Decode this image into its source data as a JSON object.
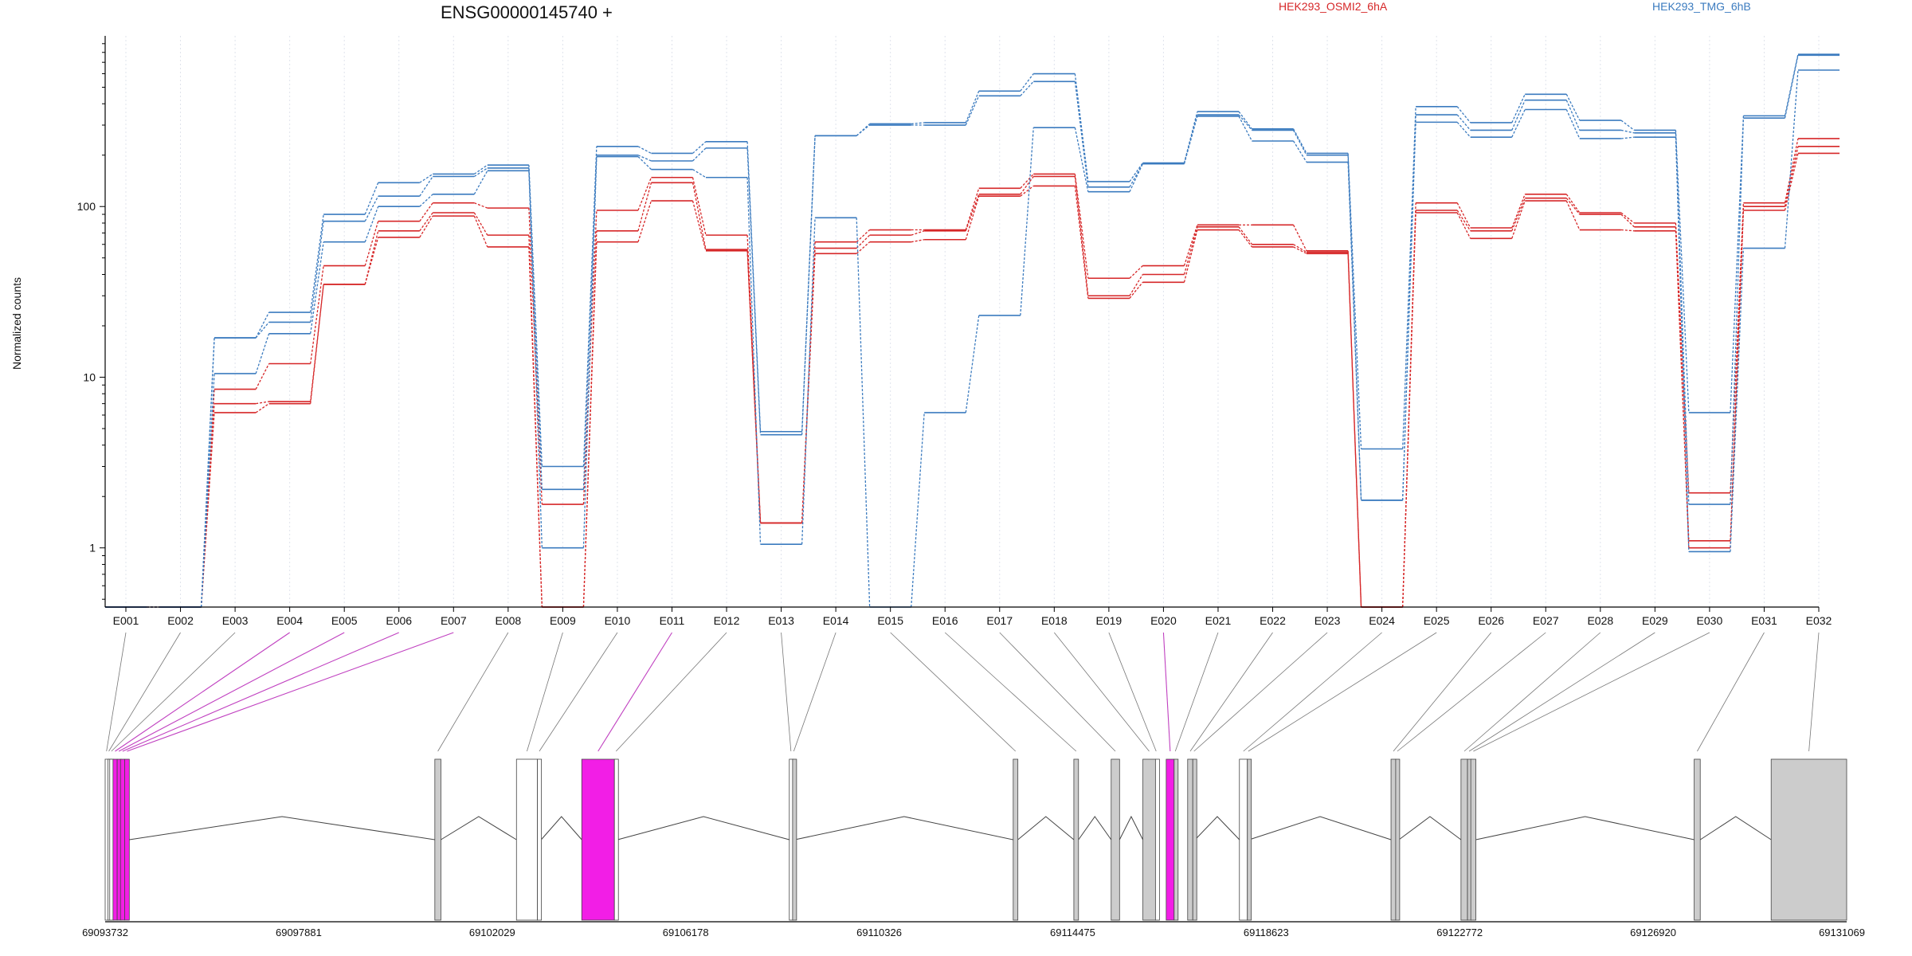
{
  "chart_data": {
    "type": "line",
    "title": "ENSG00000145740 +",
    "xlabel": "",
    "ylabel": "Normalized counts",
    "y_scale": "log",
    "ylim": [
      0.45,
      1000
    ],
    "y_ticks": [
      {
        "value": 1,
        "label": "1"
      },
      {
        "value": 10,
        "label": "10"
      },
      {
        "value": 100,
        "label": "100"
      }
    ],
    "grid": "vertical dotted",
    "legend_placement": "top",
    "legend": [
      {
        "label": "HEK293_OSMI2_6hA",
        "color": "#d62728"
      },
      {
        "label": "HEK293_TMG_6hB",
        "color": "#3b7bbf"
      }
    ],
    "categories": [
      "E001",
      "E002",
      "E003",
      "E004",
      "E005",
      "E006",
      "E007",
      "E008",
      "E009",
      "E010",
      "E011",
      "E012",
      "E013",
      "E014",
      "E015",
      "E016",
      "E017",
      "E018",
      "E019",
      "E020",
      "E021",
      "E022",
      "E023",
      "E024",
      "E025",
      "E026",
      "E027",
      "E028",
      "E029",
      "E030",
      "E031",
      "E032"
    ],
    "series": [
      {
        "group": "HEK293_OSMI2_6hA",
        "color": "#d62728",
        "values": [
          0.45,
          0.45,
          8.5,
          12,
          45,
          82,
          105,
          98,
          1.8,
          95,
          148,
          68,
          1.4,
          62,
          73,
          73,
          128,
          155,
          38,
          45,
          78,
          78,
          55,
          0.45,
          105,
          75,
          118,
          92,
          80,
          2.1,
          105,
          250
        ]
      },
      {
        "group": "HEK293_OSMI2_6hA",
        "color": "#d62728",
        "values": [
          0.45,
          0.45,
          7,
          7.2,
          35,
          72,
          92,
          68,
          0.45,
          72,
          138,
          56,
          1.4,
          57,
          68,
          72,
          118,
          150,
          30,
          40,
          76,
          60,
          54,
          0.45,
          95,
          72,
          112,
          90,
          76,
          1.1,
          100,
          225
        ]
      },
      {
        "group": "HEK293_OSMI2_6hA",
        "color": "#d62728",
        "values": [
          0.45,
          0.45,
          6.2,
          7,
          35,
          66,
          88,
          58,
          0.45,
          62,
          108,
          55,
          1.4,
          53,
          62,
          64,
          115,
          132,
          29,
          36,
          73,
          58,
          53,
          0.45,
          92,
          65,
          108,
          73,
          72,
          1.0,
          95,
          205
        ]
      },
      {
        "group": "HEK293_TMG_6hB",
        "color": "#3b7bbf",
        "values": [
          0.45,
          0.45,
          17,
          24,
          90,
          138,
          155,
          175,
          3,
          225,
          205,
          240,
          4.8,
          260,
          305,
          310,
          475,
          600,
          140,
          180,
          360,
          285,
          205,
          3.8,
          385,
          310,
          455,
          320,
          280,
          6.2,
          340,
          780
        ]
      },
      {
        "group": "HEK293_TMG_6hB",
        "color": "#3b7bbf",
        "values": [
          0.45,
          0.45,
          17,
          21,
          82,
          115,
          150,
          168,
          2.2,
          200,
          185,
          220,
          4.6,
          260,
          300,
          300,
          445,
          540,
          130,
          178,
          345,
          280,
          200,
          1.9,
          345,
          280,
          420,
          280,
          270,
          1.8,
          330,
          770
        ]
      },
      {
        "group": "HEK293_TMG_6hB",
        "color": "#3b7bbf",
        "values": [
          0.45,
          0.45,
          10.5,
          18,
          62,
          100,
          118,
          162,
          1.0,
          196,
          165,
          148,
          1.05,
          86,
          0.45,
          6.2,
          23,
          290,
          122,
          178,
          338,
          242,
          182,
          1.9,
          312,
          255,
          370,
          250,
          255,
          0.95,
          57,
          630
        ]
      }
    ]
  },
  "gene_model": {
    "coordinate_labels": [
      "69093732",
      "69097881",
      "69102029",
      "69106178",
      "69110326",
      "69114475",
      "69118623",
      "69122772",
      "69126920",
      "69131069"
    ],
    "exons": [
      {
        "id": "E001",
        "start": 69093732,
        "end": 69093790,
        "fill": "white"
      },
      {
        "id": "E002",
        "start": 69093790,
        "end": 69093830,
        "fill": "white"
      },
      {
        "id": "E003",
        "start": 69093830,
        "end": 69093900,
        "fill": "white"
      },
      {
        "id": "E004",
        "start": 69093900,
        "end": 69093990,
        "fill": "magenta"
      },
      {
        "id": "E005",
        "start": 69093990,
        "end": 69094060,
        "fill": "magenta"
      },
      {
        "id": "E006",
        "start": 69094060,
        "end": 69094150,
        "fill": "magenta"
      },
      {
        "id": "E007",
        "start": 69094150,
        "end": 69094250,
        "fill": "magenta"
      },
      {
        "id": "E008",
        "start": 69100800,
        "end": 69100930,
        "fill": "grey"
      },
      {
        "id": "E009",
        "start": 69102550,
        "end": 69103000,
        "fill": "white"
      },
      {
        "id": "E010",
        "start": 69103000,
        "end": 69103080,
        "fill": "white"
      },
      {
        "id": "E011",
        "start": 69103950,
        "end": 69104650,
        "fill": "magenta"
      },
      {
        "id": "E012",
        "start": 69104650,
        "end": 69104720,
        "fill": "white"
      },
      {
        "id": "E013",
        "start": 69108400,
        "end": 69108470,
        "fill": "white"
      },
      {
        "id": "E014",
        "start": 69108470,
        "end": 69108520,
        "fill": "grey"
      },
      {
        "id": "E015",
        "start": 69113200,
        "end": 69113300,
        "fill": "grey"
      },
      {
        "id": "E016",
        "start": 69114500,
        "end": 69114600,
        "fill": "grey"
      },
      {
        "id": "E017",
        "start": 69115300,
        "end": 69115480,
        "fill": "grey"
      },
      {
        "id": "E018",
        "start": 69115980,
        "end": 69116250,
        "fill": "grey"
      },
      {
        "id": "E019",
        "start": 69116250,
        "end": 69116280,
        "fill": "white"
      },
      {
        "id": "E020",
        "start": 69116480,
        "end": 69116650,
        "fill": "magenta"
      },
      {
        "id": "E021",
        "start": 69116650,
        "end": 69116700,
        "fill": "grey"
      },
      {
        "id": "E022",
        "start": 69116940,
        "end": 69117050,
        "fill": "grey"
      },
      {
        "id": "E023",
        "start": 69117050,
        "end": 69117100,
        "fill": "grey"
      },
      {
        "id": "E024",
        "start": 69118050,
        "end": 69118220,
        "fill": "white"
      },
      {
        "id": "E025",
        "start": 69118220,
        "end": 69118260,
        "fill": "grey"
      },
      {
        "id": "E026",
        "start": 69121300,
        "end": 69121400,
        "fill": "grey"
      },
      {
        "id": "E027",
        "start": 69121400,
        "end": 69121470,
        "fill": "grey"
      },
      {
        "id": "E028",
        "start": 69122800,
        "end": 69122940,
        "fill": "grey"
      },
      {
        "id": "E029",
        "start": 69122940,
        "end": 69123010,
        "fill": "grey"
      },
      {
        "id": "E030",
        "start": 69123010,
        "end": 69123120,
        "fill": "grey"
      },
      {
        "id": "E031",
        "start": 69127800,
        "end": 69127930,
        "fill": "grey"
      },
      {
        "id": "E032",
        "start": 69129450,
        "end": 69131069,
        "fill": "grey"
      }
    ]
  },
  "colors": {
    "osmi2": "#d62728",
    "tmg": "#3b7bbf",
    "magenta": "#f21ee6",
    "grey_exon": "#cccccc",
    "connector": "#777777",
    "connector_highlight": "#c040c0"
  }
}
